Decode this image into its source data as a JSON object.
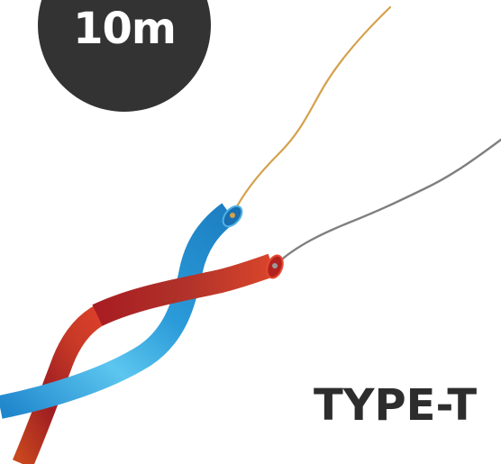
{
  "badge": {
    "length_label": "10m"
  },
  "product": {
    "type_label": "TYPE-T"
  },
  "colors": {
    "badge_background": "#333333",
    "badge_text": "#ffffff",
    "type_text": "#2d2d2d",
    "blue_sheath": "#2a9ad8",
    "red_sheath": "#c0282a",
    "copper_wire": "#d4a14c",
    "silver_wire": "#7f7f7f"
  }
}
